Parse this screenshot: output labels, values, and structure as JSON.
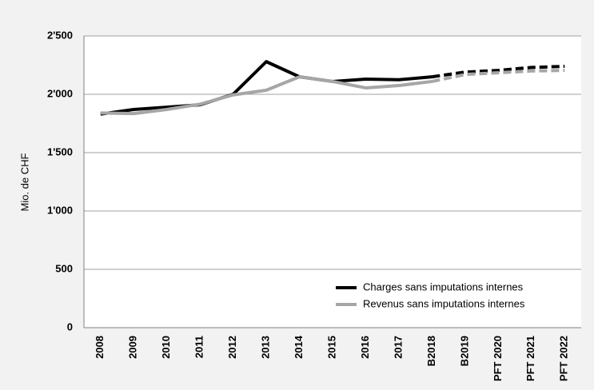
{
  "chart_data": {
    "type": "line",
    "ylabel": "Mio. de CHF",
    "categories": [
      "2008",
      "2009",
      "2010",
      "2011",
      "2012",
      "2013",
      "2014",
      "2015",
      "2016",
      "2017",
      "B2018",
      "B2019",
      "PFT 2020",
      "PFT 2021",
      "PFT 2022"
    ],
    "series": [
      {
        "name": "Charges sans imputations internes",
        "color": "#000000",
        "values": [
          1830,
          1870,
          1890,
          1910,
          2000,
          2280,
          2150,
          2110,
          2130,
          2125,
          2150,
          2190,
          2205,
          2230,
          2240
        ]
      },
      {
        "name": "Revenus sans imputations internes",
        "color": "#a6a6a6",
        "values": [
          1840,
          1835,
          1870,
          1915,
          1995,
          2035,
          2150,
          2110,
          2055,
          2075,
          2110,
          2170,
          2185,
          2200,
          2205
        ]
      }
    ],
    "dashed_from": 10,
    "ylim": [
      0,
      2500
    ],
    "yticks": [
      0,
      500,
      {
        "value": 1000,
        "label": "1'000"
      },
      {
        "value": 1500,
        "label": "1'500"
      },
      {
        "value": 2000,
        "label": "2'000"
      },
      {
        "value": 2500,
        "label": "2'500"
      }
    ],
    "grid": true,
    "legend": "lower right"
  }
}
